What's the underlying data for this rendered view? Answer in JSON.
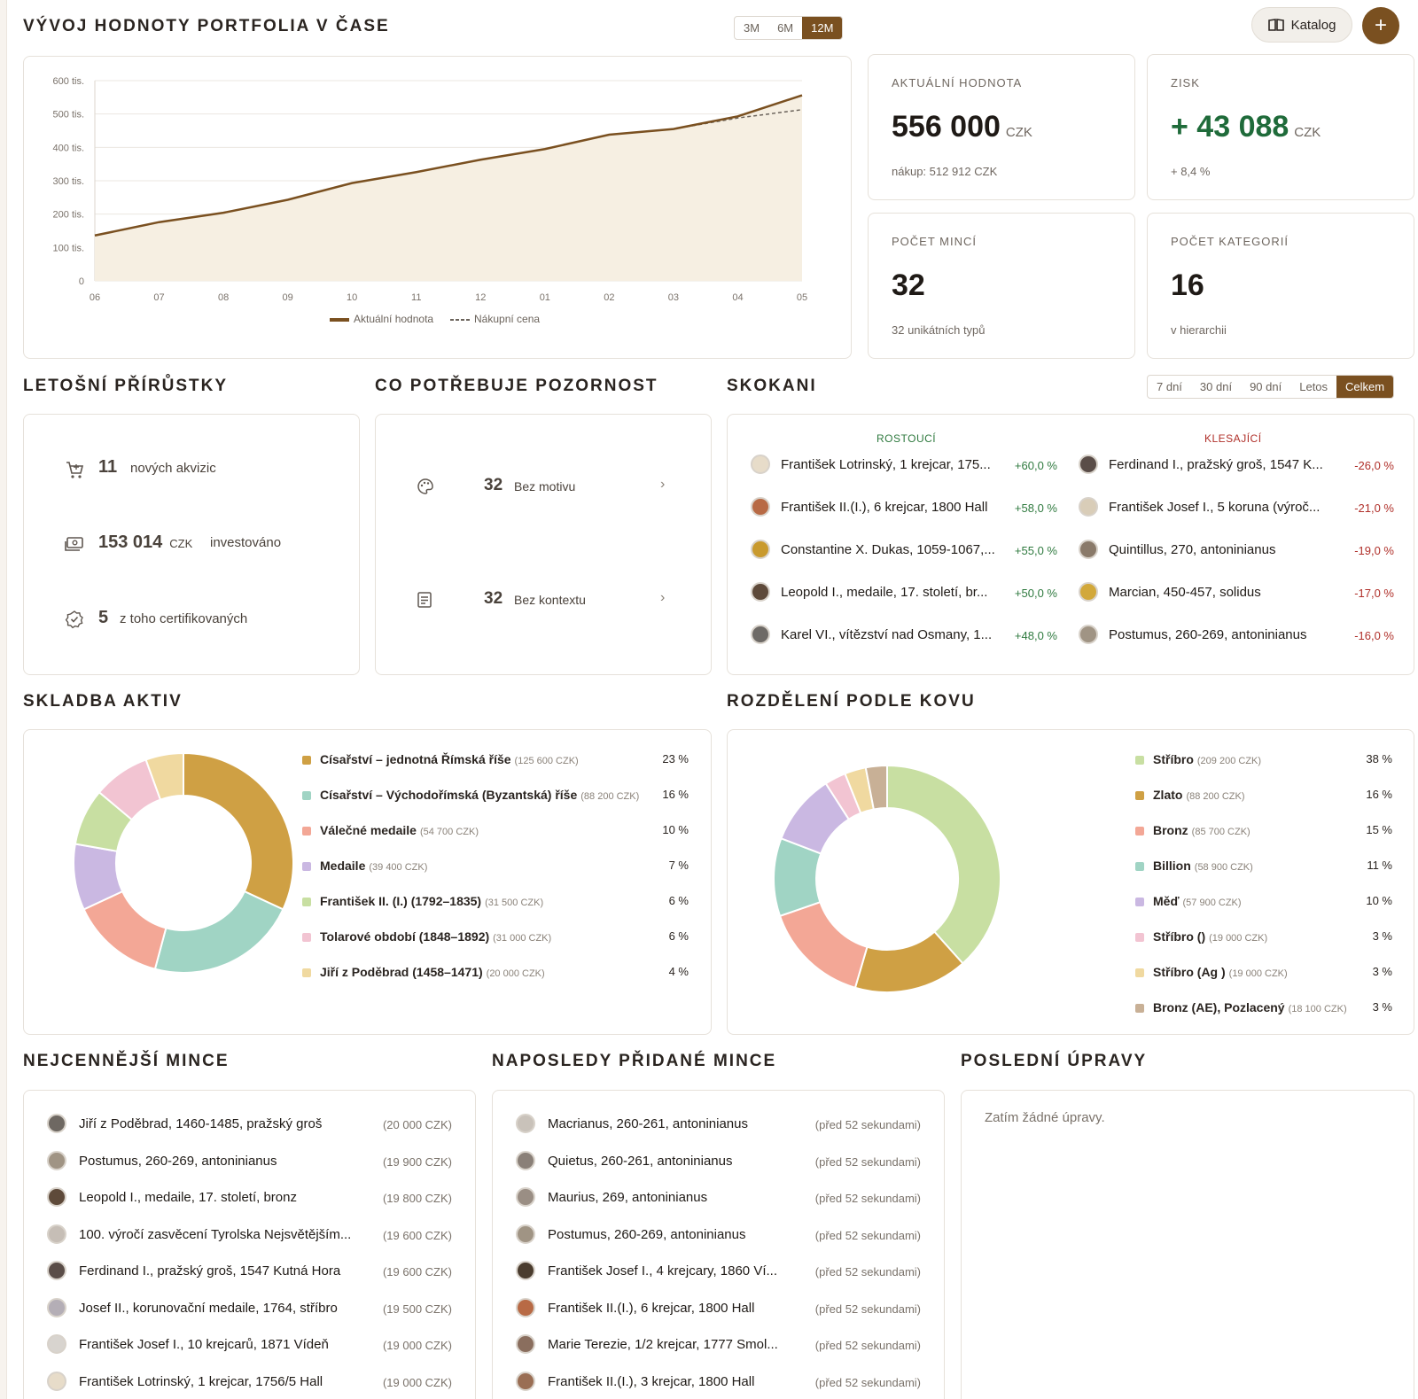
{
  "header": {
    "title": "VÝVOJ HODNOTY PORTFOLIA V ČASE",
    "range_tabs": [
      {
        "label": "3M",
        "active": false
      },
      {
        "label": "6M",
        "active": false
      },
      {
        "label": "12M",
        "active": true
      }
    ],
    "catalog_label": "Katalog",
    "add_label": "+",
    "accent_color": "#7a5020"
  },
  "chart_data": {
    "type": "area",
    "x": [
      "06",
      "07",
      "08",
      "09",
      "10",
      "11",
      "12",
      "01",
      "02",
      "03",
      "04",
      "05"
    ],
    "series": [
      {
        "name": "Aktuální hodnota",
        "values": [
          136000,
          176000,
          204000,
          243000,
          293000,
          326000,
          363000,
          395000,
          438000,
          455000,
          493000,
          556000
        ],
        "color": "#7a5020"
      },
      {
        "name": "Nákupní cena",
        "values": [
          136000,
          176000,
          204000,
          243000,
          293000,
          326000,
          363000,
          395000,
          438000,
          455000,
          488000,
          513000
        ],
        "color": "#6b635b"
      }
    ],
    "y_ticks": [
      "0",
      "100 tis.",
      "200 tis.",
      "300 tis.",
      "400 tis.",
      "500 tis.",
      "600 tis."
    ],
    "ylim": [
      0,
      600000
    ],
    "grid": true,
    "legend": "bottom"
  },
  "stats": {
    "current": {
      "label": "AKTUÁLNÍ HODNOTA",
      "value": "556 000",
      "unit": "CZK",
      "sub": "nákup: 512 912 CZK"
    },
    "profit": {
      "label": "ZISK",
      "value": "+ 43 088",
      "unit": "CZK",
      "sub": "+ 8,4 %",
      "color": "#1f6b3a"
    },
    "coins": {
      "label": "POČET MINCÍ",
      "value": "32",
      "sub": "32 unikátních typů"
    },
    "categories": {
      "label": "POČET KATEGORIÍ",
      "value": "16",
      "sub": "v hierarchii"
    }
  },
  "increments": {
    "title": "LETOŠNÍ PŘÍRŮSTKY",
    "rows": [
      {
        "icon": "cart-icon",
        "value": "11",
        "unit": "",
        "text": "nových akvizic"
      },
      {
        "icon": "money-icon",
        "value": "153 014",
        "unit": "CZK",
        "text": "investováno"
      },
      {
        "icon": "badge-check-icon",
        "value": "5",
        "unit": "",
        "text": "z toho certifikovaných"
      }
    ]
  },
  "attention": {
    "title": "CO POTŘEBUJE POZORNOST",
    "rows": [
      {
        "icon": "palette-icon",
        "value": "32",
        "text": "Bez motivu"
      },
      {
        "icon": "document-icon",
        "value": "32",
        "text": "Bez kontextu"
      }
    ]
  },
  "movers": {
    "title": "SKOKANI",
    "periods": [
      {
        "label": "7 dní",
        "active": false
      },
      {
        "label": "30 dní",
        "active": false
      },
      {
        "label": "90 dní",
        "active": false
      },
      {
        "label": "Letos",
        "active": false
      },
      {
        "label": "Celkem",
        "active": true
      }
    ],
    "up_label": "ROSTOUCÍ",
    "down_label": "KLESAJÍCÍ",
    "up_color": "#2f7a3f",
    "down_color": "#b0302a",
    "up": [
      {
        "name": "František Lotrinský, 1 krejcar, 175...",
        "pct": "+60,0 %",
        "coin": "#e7dcc9"
      },
      {
        "name": "František II.(I.), 6 krejcar, 1800 Hall",
        "pct": "+58,0 %",
        "coin": "#b86a45"
      },
      {
        "name": "Constantine X. Dukas, 1059-1067,...",
        "pct": "+55,0 %",
        "coin": "#c99a2e"
      },
      {
        "name": "Leopold I., medaile, 17. století, br...",
        "pct": "+50,0 %",
        "coin": "#5e4a3a"
      },
      {
        "name": "Karel VI., vítězství nad Osmany, 1...",
        "pct": "+48,0 %",
        "coin": "#6e6a66"
      }
    ],
    "down": [
      {
        "name": "Ferdinand I., pražský groš, 1547 K...",
        "pct": "-26,0 %",
        "coin": "#5a4d48"
      },
      {
        "name": "František Josef I., 5 koruna (výroč...",
        "pct": "-21,0 %",
        "coin": "#d9cdb8"
      },
      {
        "name": "Quintillus, 270, antoninianus",
        "pct": "-19,0 %",
        "coin": "#8a7a6a"
      },
      {
        "name": "Marcian, 450-457, solidus",
        "pct": "-17,0 %",
        "coin": "#d2a83a"
      },
      {
        "name": "Postumus, 260-269, antoninianus",
        "pct": "-16,0 %",
        "coin": "#a09484"
      }
    ]
  },
  "composition": {
    "title": "SKLADBA AKTIV",
    "items": [
      {
        "name": "Císařství – jednotná Římská říše",
        "value": "(125 600 CZK)",
        "pct": "23 %",
        "share": 23,
        "color": "#cfa044"
      },
      {
        "name": "Císařství – Východořímská (Byzantská) říše",
        "value": "(88 200 CZK)",
        "pct": "16 %",
        "share": 16,
        "color": "#a0d4c4"
      },
      {
        "name": "Válečné medaile",
        "value": "(54 700 CZK)",
        "pct": "10 %",
        "share": 10,
        "color": "#f3a796"
      },
      {
        "name": "Medaile",
        "value": "(39 400 CZK)",
        "pct": "7 %",
        "share": 7,
        "color": "#cab8e2"
      },
      {
        "name": "František II. (I.) (1792–1835)",
        "value": "(31 500 CZK)",
        "pct": "6 %",
        "share": 6,
        "color": "#c8dfa2"
      },
      {
        "name": "Tolarové období (1848–1892)",
        "value": "(31 000 CZK)",
        "pct": "6 %",
        "share": 6,
        "color": "#f2c4d2"
      },
      {
        "name": "Jiří z Poděbrad (1458–1471)",
        "value": "(20 000 CZK)",
        "pct": "4 %",
        "share": 4,
        "color": "#f0d9a0"
      }
    ]
  },
  "metals": {
    "title": "ROZDĚLENÍ PODLE KOVU",
    "items": [
      {
        "name": "Stříbro",
        "value": "(209 200 CZK)",
        "pct": "38 %",
        "share": 38,
        "color": "#c8dfa2"
      },
      {
        "name": "Zlato",
        "value": "(88 200 CZK)",
        "pct": "16 %",
        "share": 16,
        "color": "#cfa044"
      },
      {
        "name": "Bronz",
        "value": "(85 700 CZK)",
        "pct": "15 %",
        "share": 15,
        "color": "#f3a796"
      },
      {
        "name": "Billion",
        "value": "(58 900 CZK)",
        "pct": "11 %",
        "share": 11,
        "color": "#a0d4c4"
      },
      {
        "name": "Měď",
        "value": "(57 900 CZK)",
        "pct": "10 %",
        "share": 10,
        "color": "#cab8e2"
      },
      {
        "name": "Stříbro ()",
        "value": "(19 000 CZK)",
        "pct": "3 %",
        "share": 3,
        "color": "#f2c4d2"
      },
      {
        "name": "Stříbro (Ag )",
        "value": "(19 000 CZK)",
        "pct": "3 %",
        "share": 3,
        "color": "#f0d9a0"
      },
      {
        "name": "Bronz (AE), Pozlacený",
        "value": "(18 100 CZK)",
        "pct": "3 %",
        "share": 3,
        "color": "#c8b096"
      }
    ]
  },
  "valuable": {
    "title": "NEJCENNĚJŠÍ MINCE",
    "items": [
      {
        "name": "Jiří z Poděbrad, 1460-1485, pražský groš",
        "value": "(20 000 CZK)",
        "coin": "#6e6862"
      },
      {
        "name": "Postumus, 260-269, antoninianus",
        "value": "(19 900 CZK)",
        "coin": "#a09484"
      },
      {
        "name": "Leopold I., medaile, 17. století, bronz",
        "value": "(19 800 CZK)",
        "coin": "#5e4a3a"
      },
      {
        "name": "100. výročí zasvěcení Tyrolska Nejsvětějším...",
        "value": "(19 600 CZK)",
        "coin": "#c6beb6"
      },
      {
        "name": "Ferdinand I., pražský groš, 1547 Kutná Hora",
        "value": "(19 600 CZK)",
        "coin": "#5a4d48"
      },
      {
        "name": "Josef II., korunovační medaile, 1764, stříbro",
        "value": "(19 500 CZK)",
        "coin": "#b4aeb6"
      },
      {
        "name": "František Josef I., 10 krejcarů, 1871 Vídeň",
        "value": "(19 000 CZK)",
        "coin": "#d8d4cf"
      },
      {
        "name": "František Lotrinský, 1 krejcar, 1756/5 Hall",
        "value": "(19 000 CZK)",
        "coin": "#e7dcc9"
      }
    ]
  },
  "recent": {
    "title": "NAPOSLEDY PŘIDANÉ MINCE",
    "items": [
      {
        "name": "Macrianus, 260-261, antoninianus",
        "value": "(před 52 sekundami)",
        "coin": "#c9c2ba"
      },
      {
        "name": "Quietus, 260-261, antoninianus",
        "value": "(před 52 sekundami)",
        "coin": "#8a8078"
      },
      {
        "name": "Maurius, 269, antoninianus",
        "value": "(před 52 sekundami)",
        "coin": "#9a8e84"
      },
      {
        "name": "Postumus, 260-269, antoninianus",
        "value": "(před 52 sekundami)",
        "coin": "#a09484"
      },
      {
        "name": "František Josef I., 4 krejcary, 1860 Ví...",
        "value": "(před 52 sekundami)",
        "coin": "#4a3c2e"
      },
      {
        "name": "František II.(I.), 6 krejcar, 1800 Hall",
        "value": "(před 52 sekundami)",
        "coin": "#b86a45"
      },
      {
        "name": "Marie Terezie, 1/2 krejcar, 1777 Smol...",
        "value": "(před 52 sekundami)",
        "coin": "#8a6e5e"
      },
      {
        "name": "František II.(I.), 3 krejcar, 1800 Hall",
        "value": "(před 52 sekundami)",
        "coin": "#9a6e54"
      }
    ]
  },
  "edits": {
    "title": "POSLEDNÍ ÚPRAVY",
    "empty": "Zatím žádné úpravy."
  }
}
